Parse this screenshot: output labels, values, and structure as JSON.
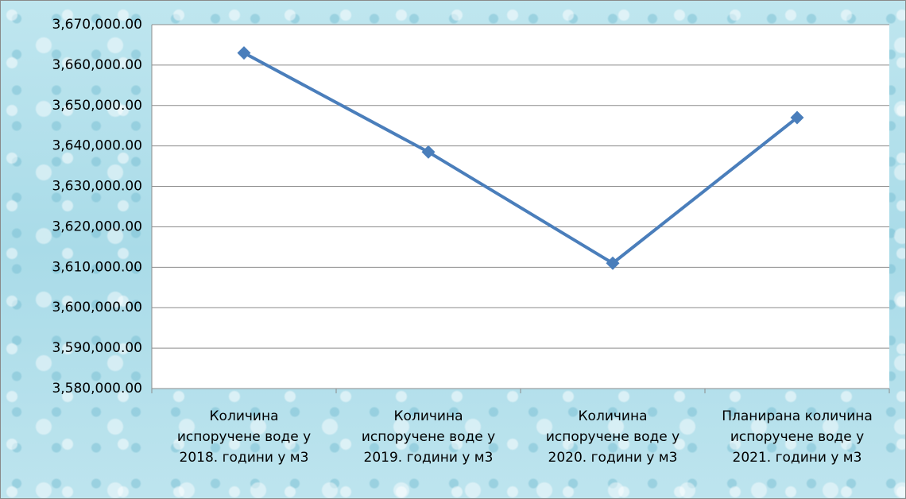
{
  "chart_data": {
    "type": "line",
    "categories": [
      "Количина\nиспоручене воде у\n2018. години у м3",
      "Количина\nиспоручене воде у\n2019. години у м3",
      "Количина\nиспоручене воде у\n2020. години у м3",
      "Планирана количина\nиспоручене воде у\n2021. години у м3"
    ],
    "series": [
      {
        "color": "#4a7ebb",
        "values": [
          3663000,
          3638500,
          3611000,
          3647000
        ]
      }
    ],
    "ylim": [
      3580000,
      3670000
    ],
    "yticks": [
      {
        "value": 3580000,
        "label": "3,580,000.00"
      },
      {
        "value": 3590000,
        "label": "3,590,000.00"
      },
      {
        "value": 3600000,
        "label": "3,600,000.00"
      },
      {
        "value": 3610000,
        "label": "3,610,000.00"
      },
      {
        "value": 3620000,
        "label": "3,620,000.00"
      },
      {
        "value": 3630000,
        "label": "3,630,000.00"
      },
      {
        "value": 3640000,
        "label": "3,640,000.00"
      },
      {
        "value": 3650000,
        "label": "3,650,000.00"
      },
      {
        "value": 3660000,
        "label": "3,660,000.00"
      },
      {
        "value": 3670000,
        "label": "3,670,000.00"
      }
    ],
    "grid": true
  }
}
